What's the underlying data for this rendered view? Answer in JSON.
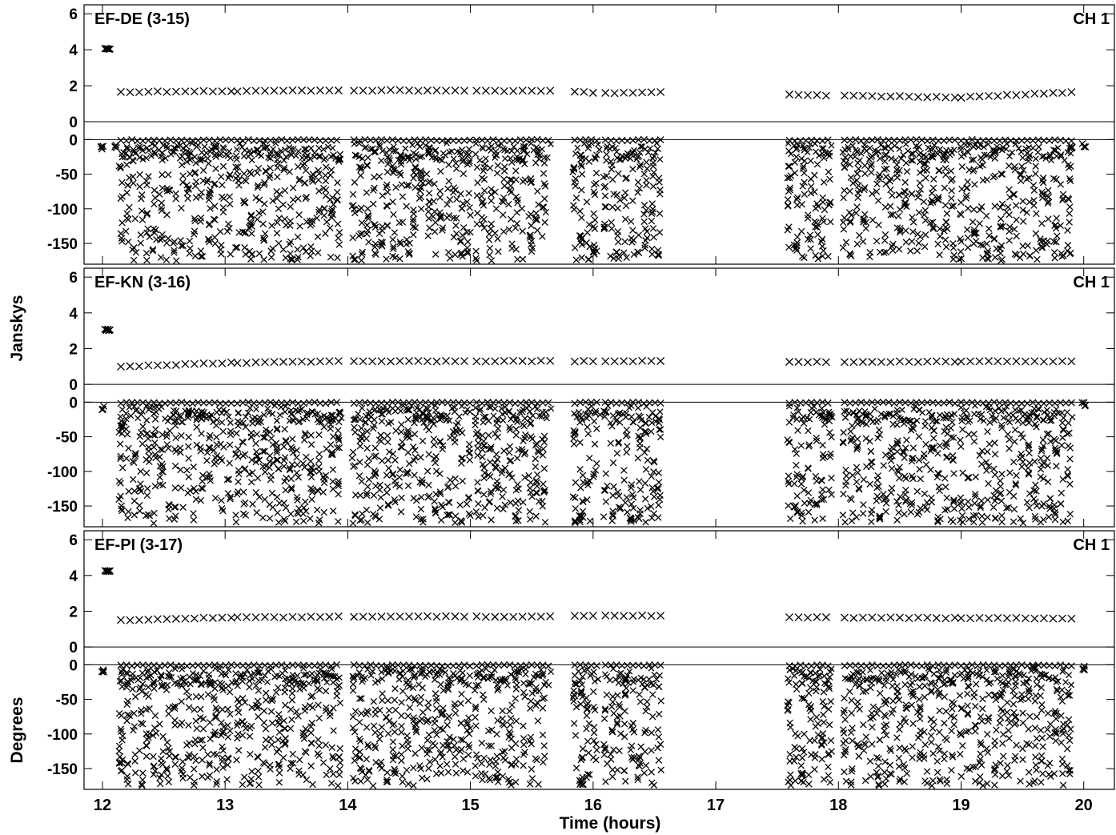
{
  "chart_data": {
    "type": "scatter",
    "xlabel": "Time (hours)",
    "xlim": [
      11.85,
      20.25
    ],
    "x_ticks": [
      "12",
      "13",
      "14",
      "15",
      "16",
      "17",
      "18",
      "19",
      "20"
    ],
    "amplitude_axis_label": "Janskys",
    "phase_axis_label": "Degrees",
    "amplitude_ylim": [
      -0.8,
      6.5
    ],
    "amplitude_ticks": [
      "6",
      "4",
      "2",
      "0"
    ],
    "phase_ylim": [
      -180,
      5
    ],
    "phase_ticks": [
      "0",
      "-50",
      "-100",
      "-150"
    ],
    "scan_intervals": [
      [
        12.15,
        13.05
      ],
      [
        13.1,
        13.95
      ],
      [
        14.05,
        15.0
      ],
      [
        15.05,
        15.65
      ],
      [
        15.85,
        16.05
      ],
      [
        16.1,
        16.55
      ],
      [
        17.6,
        17.95
      ],
      [
        18.05,
        18.95
      ],
      [
        19.0,
        19.9
      ]
    ],
    "panels": [
      {
        "title": "EF-DE (3-15)",
        "channel": "CH 1",
        "amplitude_level": [
          [
            12.05,
            4.05
          ],
          [
            12.15,
            1.65
          ],
          [
            14.0,
            1.75
          ],
          [
            15.65,
            1.7
          ],
          [
            16.1,
            1.6
          ],
          [
            16.55,
            1.65
          ],
          [
            17.6,
            1.5
          ],
          [
            19.0,
            1.35
          ],
          [
            19.95,
            1.65
          ],
          [
            20.0,
            1.75
          ]
        ],
        "phase_extremes": [
          {
            "x": 12.0,
            "y": -12
          },
          {
            "x": 12.1,
            "y": -10
          },
          {
            "x": 16.0,
            "y": -160
          },
          {
            "x": 16.2,
            "y": -165
          },
          {
            "x": 17.65,
            "y": -155
          },
          {
            "x": 19.9,
            "y": -10
          },
          {
            "x": 20.0,
            "y": -8
          }
        ]
      },
      {
        "title": "EF-KN (3-16)",
        "channel": "CH 1",
        "amplitude_level": [
          [
            12.05,
            3.05
          ],
          [
            12.15,
            1.0
          ],
          [
            13.0,
            1.2
          ],
          [
            14.0,
            1.3
          ],
          [
            15.65,
            1.3
          ],
          [
            16.1,
            1.3
          ],
          [
            16.55,
            1.3
          ],
          [
            17.6,
            1.25
          ],
          [
            19.95,
            1.3
          ],
          [
            20.0,
            1.35
          ]
        ],
        "phase_extremes": [
          {
            "x": 12.0,
            "y": -8
          },
          {
            "x": 12.15,
            "y": -35
          },
          {
            "x": 15.9,
            "y": -165
          },
          {
            "x": 16.3,
            "y": -170
          },
          {
            "x": 17.65,
            "y": -150
          },
          {
            "x": 20.0,
            "y": -3
          }
        ]
      },
      {
        "title": "EF-PI (3-17)",
        "channel": "CH 1",
        "amplitude_level": [
          [
            12.05,
            4.25
          ],
          [
            12.15,
            1.5
          ],
          [
            13.0,
            1.65
          ],
          [
            14.0,
            1.7
          ],
          [
            15.65,
            1.7
          ],
          [
            16.1,
            1.75
          ],
          [
            16.55,
            1.75
          ],
          [
            17.6,
            1.65
          ],
          [
            19.95,
            1.6
          ],
          [
            20.0,
            1.7
          ]
        ],
        "phase_extremes": [
          {
            "x": 12.0,
            "y": -10
          },
          {
            "x": 12.15,
            "y": -140
          },
          {
            "x": 15.9,
            "y": -170
          },
          {
            "x": 17.7,
            "y": -160
          },
          {
            "x": 19.6,
            "y": -5
          },
          {
            "x": 20.0,
            "y": -5
          }
        ]
      }
    ]
  }
}
